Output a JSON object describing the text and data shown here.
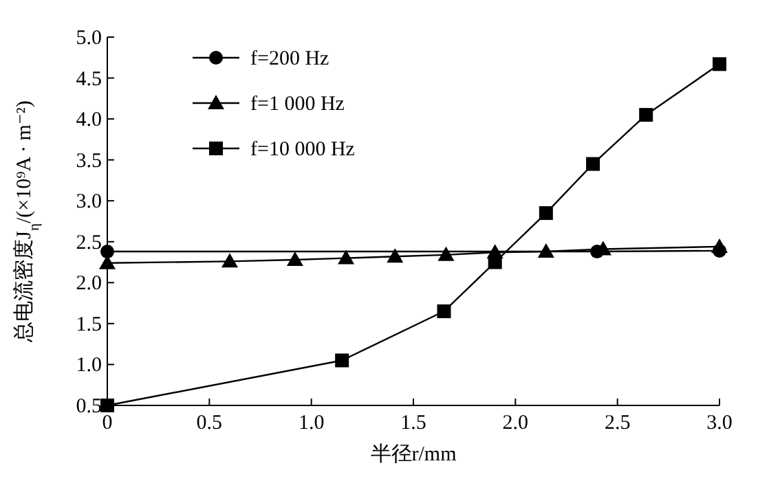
{
  "chart_data": {
    "type": "line",
    "xlabel": "半径r/mm",
    "ylabel": "总电流密度J$_{η}$/(×10⁹A · m⁻²)",
    "xlim": [
      0,
      3
    ],
    "ylim": [
      0.5,
      5
    ],
    "xticks": [
      0,
      {
        "value": 0.5,
        "label": "0.5"
      },
      {
        "value": 1,
        "label": "1.0"
      },
      {
        "value": 1.5,
        "label": "1.5"
      },
      {
        "value": 2,
        "label": "2.0"
      },
      {
        "value": 2.5,
        "label": "2.5"
      },
      {
        "value": 3,
        "label": "3.0"
      }
    ],
    "yticks": [
      {
        "value": 0.5,
        "label": "0.5"
      },
      {
        "value": 1,
        "label": "1.0"
      },
      1.5,
      {
        "value": 2,
        "label": "2.0"
      },
      2.5,
      {
        "value": 3,
        "label": "3.0"
      },
      3.5,
      {
        "value": 4,
        "label": "4.0"
      },
      4.5,
      {
        "value": 5,
        "label": "5.0"
      }
    ],
    "legend": "top left",
    "grid": false,
    "series": [
      {
        "name": "f=200 Hz",
        "color": "#000000",
        "marker": "circle",
        "x": [
          0,
          2.4,
          3.0
        ],
        "values": [
          2.38,
          2.38,
          2.39
        ]
      },
      {
        "name": "f=1 000 Hz",
        "color": "#000000",
        "marker": "triangle",
        "x": [
          0,
          0.6,
          0.92,
          1.17,
          1.41,
          1.66,
          1.9,
          2.15,
          2.43,
          3.0
        ],
        "values": [
          2.24,
          2.26,
          2.28,
          2.3,
          2.32,
          2.34,
          2.37,
          2.38,
          2.41,
          2.44
        ]
      },
      {
        "name": "f=10 000 Hz",
        "color": "#000000",
        "marker": "square",
        "x": [
          0,
          1.15,
          1.65,
          1.9,
          2.15,
          2.38,
          2.64,
          3.0
        ],
        "values": [
          0.5,
          1.05,
          1.65,
          2.25,
          2.85,
          3.45,
          4.05,
          4.67
        ]
      }
    ]
  }
}
